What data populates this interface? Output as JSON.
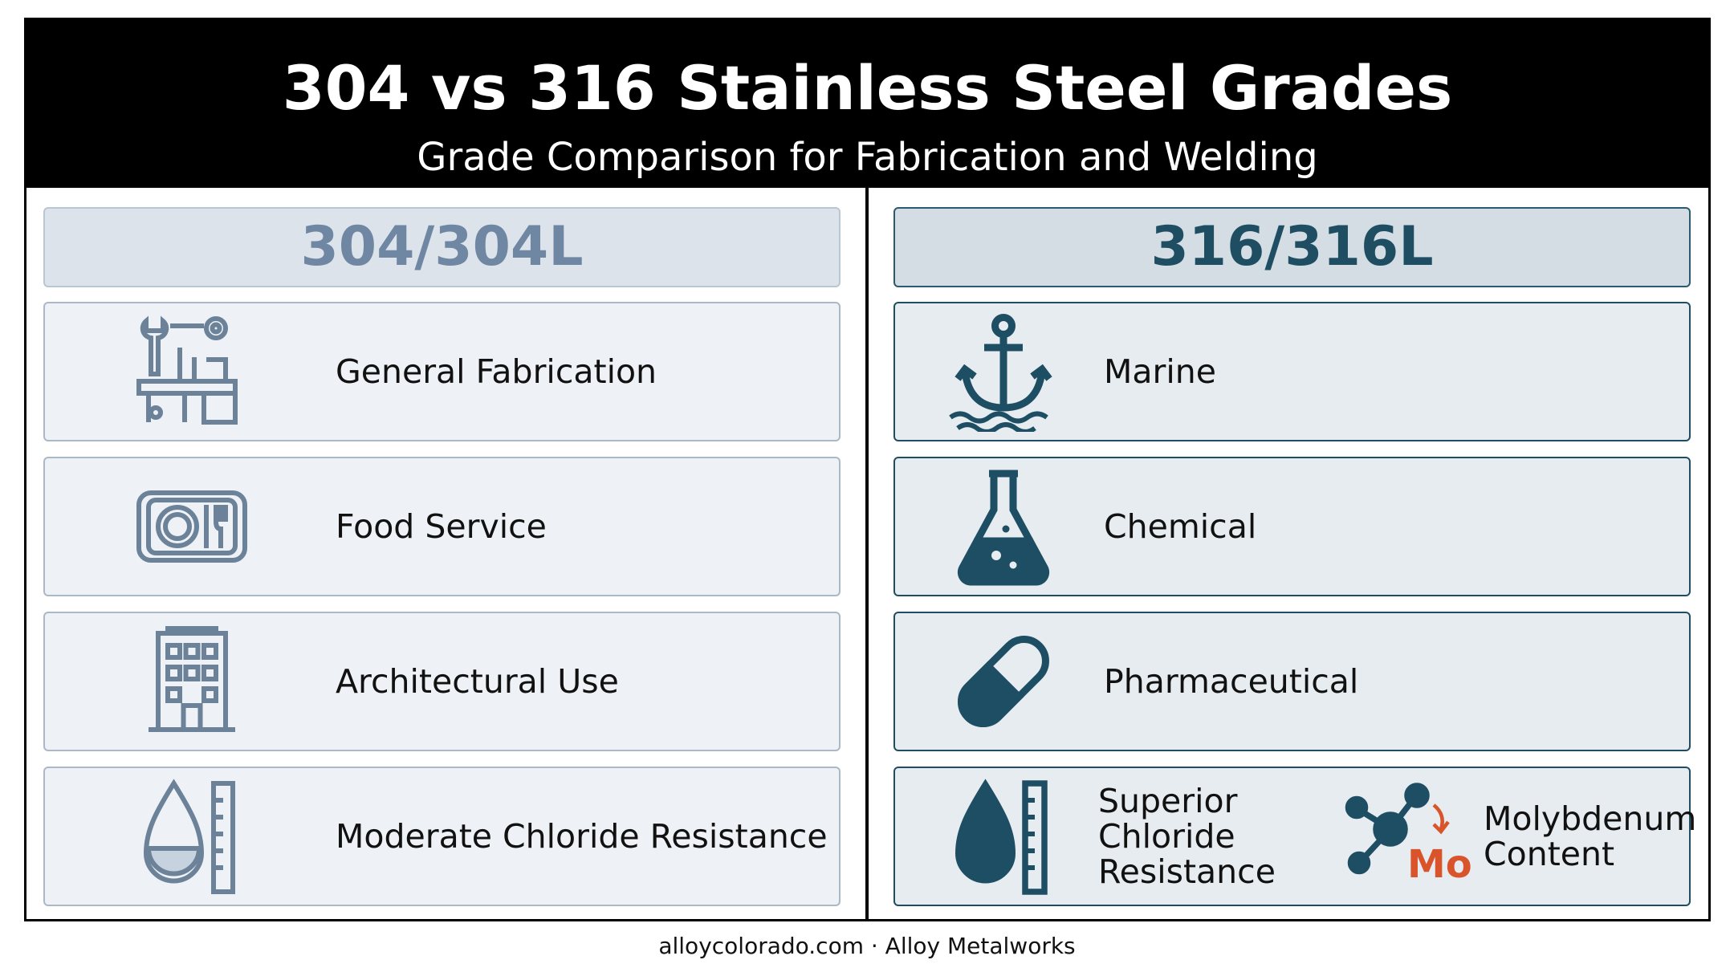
{
  "header": {
    "title": "304 vs 316 Stainless Steel Grades",
    "subtitle": "Grade Comparison for Fabrication and Welding"
  },
  "columns": [
    {
      "grade": "304/304L",
      "items": [
        "General Fabrication",
        "Food Service",
        "Architectural Use",
        "Moderate Chloride Resistance"
      ]
    },
    {
      "grade": "316/316L",
      "items": [
        "Marine",
        "Chemical",
        "Pharmaceutical",
        "Superior Chloride Resistance"
      ],
      "extra": {
        "symbol": "Mo",
        "label": "Molybdenum Content"
      }
    }
  ],
  "footer": "alloycolorado.com · Alloy Metalworks"
}
